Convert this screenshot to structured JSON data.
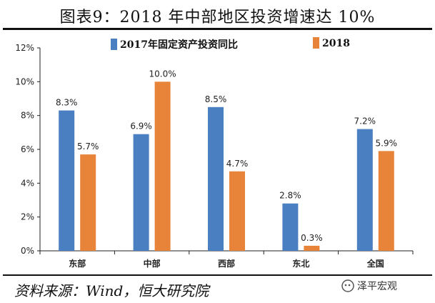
{
  "page": {
    "title": "图表9：2018 年中部地区投资增速达 10%",
    "source": "资料来源：Wind，恒大研究院",
    "watermark": "泽平宏观"
  },
  "colors": {
    "series_2017": "#4a7fc1",
    "series_2018": "#e8843a"
  },
  "chart_data": {
    "type": "bar",
    "title": "",
    "xlabel": "",
    "ylabel": "",
    "categories": [
      "东部",
      "中部",
      "西部",
      "东北",
      "全国"
    ],
    "series": [
      {
        "name": "2017年固定资产投资同比",
        "values": [
          8.3,
          6.9,
          8.5,
          2.8,
          7.2
        ],
        "labels": [
          "8.3%",
          "6.9%",
          "8.5%",
          "2.8%",
          "7.2%"
        ]
      },
      {
        "name": "2018",
        "values": [
          5.7,
          10.0,
          4.7,
          0.3,
          5.9
        ],
        "labels": [
          "5.7%",
          "10.0%",
          "4.7%",
          "0.3%",
          "5.9%"
        ]
      }
    ],
    "ylim": [
      0,
      12
    ],
    "yticks": [
      "0%",
      "2%",
      "4%",
      "6%",
      "8%",
      "10%",
      "12%"
    ],
    "legend_position": "top"
  }
}
